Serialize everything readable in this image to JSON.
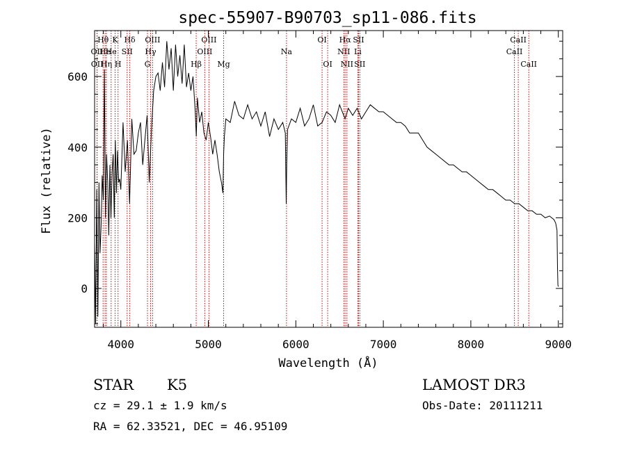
{
  "chart_data": {
    "type": "line",
    "title": "spec-55907-B90703_sp11-086.fits",
    "xlabel": "Wavelength (Å)",
    "ylabel": "Flux (relative)",
    "xlim": [
      3700,
      9050
    ],
    "ylim": [
      -110,
      730
    ],
    "xticks": [
      4000,
      5000,
      6000,
      7000,
      8000,
      9000
    ],
    "xtick_labels": [
      "4000",
      "5000",
      "6000",
      "7000",
      "8000",
      "9000"
    ],
    "yticks": [
      0,
      200,
      400,
      600
    ],
    "ytick_labels": [
      "0",
      "200",
      "400",
      "600"
    ],
    "grid": false,
    "series": [
      {
        "color": "#000000",
        "x": [
          3700,
          3712,
          3725,
          3737,
          3750,
          3762,
          3775,
          3787,
          3800,
          3812,
          3825,
          3837,
          3850,
          3862,
          3875,
          3887,
          3900,
          3912,
          3925,
          3937,
          3950,
          3962,
          3975,
          3987,
          4000,
          4025,
          4050,
          4075,
          4100,
          4125,
          4150,
          4175,
          4200,
          4225,
          4250,
          4275,
          4300,
          4325,
          4350,
          4375,
          4400,
          4425,
          4450,
          4475,
          4500,
          4525,
          4550,
          4575,
          4600,
          4625,
          4650,
          4675,
          4700,
          4725,
          4750,
          4775,
          4800,
          4825,
          4850,
          4862,
          4875,
          4900,
          4925,
          4950,
          4975,
          5000,
          5025,
          5050,
          5075,
          5100,
          5125,
          5150,
          5167,
          5175,
          5183,
          5200,
          5250,
          5300,
          5350,
          5400,
          5450,
          5500,
          5550,
          5600,
          5650,
          5700,
          5750,
          5800,
          5850,
          5880,
          5890,
          5896,
          5905,
          5950,
          6000,
          6050,
          6100,
          6150,
          6200,
          6250,
          6300,
          6350,
          6400,
          6450,
          6500,
          6563,
          6600,
          6650,
          6700,
          6750,
          6800,
          6850,
          6900,
          6950,
          7000,
          7050,
          7100,
          7150,
          7200,
          7250,
          7300,
          7350,
          7400,
          7450,
          7500,
          7550,
          7600,
          7650,
          7700,
          7750,
          7800,
          7850,
          7900,
          7950,
          8000,
          8050,
          8100,
          8150,
          8200,
          8250,
          8300,
          8350,
          8400,
          8450,
          8500,
          8550,
          8600,
          8650,
          8700,
          8750,
          8800,
          8850,
          8900,
          8950,
          8970,
          8985,
          8990,
          8995,
          9000
        ],
        "y": [
          130,
          -100,
          280,
          -80,
          300,
          100,
          180,
          320,
          250,
          620,
          200,
          380,
          300,
          150,
          350,
          200,
          330,
          380,
          200,
          420,
          270,
          390,
          300,
          310,
          280,
          470,
          330,
          420,
          240,
          480,
          380,
          390,
          440,
          470,
          350,
          420,
          490,
          300,
          450,
          560,
          600,
          610,
          560,
          640,
          570,
          700,
          620,
          680,
          560,
          690,
          600,
          660,
          580,
          690,
          570,
          610,
          560,
          600,
          500,
          430,
          540,
          470,
          500,
          440,
          420,
          470,
          430,
          380,
          420,
          380,
          330,
          300,
          270,
          380,
          430,
          480,
          470,
          530,
          490,
          480,
          520,
          480,
          500,
          460,
          500,
          430,
          480,
          450,
          470,
          440,
          240,
          350,
          450,
          480,
          470,
          510,
          460,
          480,
          520,
          460,
          470,
          500,
          490,
          470,
          520,
          480,
          510,
          490,
          510,
          480,
          500,
          520,
          510,
          500,
          500,
          490,
          480,
          470,
          470,
          460,
          440,
          440,
          440,
          420,
          400,
          390,
          380,
          370,
          360,
          350,
          350,
          340,
          330,
          330,
          320,
          310,
          300,
          290,
          280,
          280,
          270,
          260,
          250,
          250,
          240,
          240,
          230,
          220,
          220,
          210,
          210,
          200,
          205,
          195,
          185,
          165,
          60,
          10,
          5
        ]
      }
    ],
    "spectral_lines": [
      {
        "label": "Hθ",
        "wavelength": 3797,
        "row": 1
      },
      {
        "label": "OII",
        "wavelength": 3727,
        "row": 2
      },
      {
        "label": "OII",
        "wavelength": 3729,
        "row": 3
      },
      {
        "label": "He",
        "wavelength": 3820,
        "row": 2
      },
      {
        "label": "Hη",
        "wavelength": 3835,
        "row": 3
      },
      {
        "label": "K",
        "wavelength": 3934,
        "row": 1
      },
      {
        "label": "He",
        "wavelength": 3889,
        "row": 2
      },
      {
        "label": "H",
        "wavelength": 3968,
        "row": 3
      },
      {
        "label": "Hδ",
        "wavelength": 4102,
        "row": 1
      },
      {
        "label": "SII",
        "wavelength": 4072,
        "row": 2
      },
      {
        "label": "OIII",
        "wavelength": 4363,
        "row": 1
      },
      {
        "label": "Hγ",
        "wavelength": 4340,
        "row": 2
      },
      {
        "label": "G",
        "wavelength": 4304,
        "row": 3
      },
      {
        "label": "OIII",
        "wavelength": 5007,
        "row": 1
      },
      {
        "label": "OIII",
        "wavelength": 4959,
        "row": 2
      },
      {
        "label": "Hβ",
        "wavelength": 4861,
        "row": 3
      },
      {
        "label": "Mg",
        "wavelength": 5175,
        "row": 3
      },
      {
        "label": "Na",
        "wavelength": 5893,
        "row": 2
      },
      {
        "label": "OI",
        "wavelength": 6300,
        "row": 1
      },
      {
        "label": "OI",
        "wavelength": 6364,
        "row": 3
      },
      {
        "label": "Hα",
        "wavelength": 6563,
        "row": 1
      },
      {
        "label": "NII",
        "wavelength": 6548,
        "row": 2
      },
      {
        "label": "NII",
        "wavelength": 6584,
        "row": 3
      },
      {
        "label": "SII",
        "wavelength": 6717,
        "row": 1
      },
      {
        "label": "Li",
        "wavelength": 6708,
        "row": 2
      },
      {
        "label": "SII",
        "wavelength": 6731,
        "row": 3
      },
      {
        "label": "CaII",
        "wavelength": 8542,
        "row": 1
      },
      {
        "label": "CaII",
        "wavelength": 8498,
        "row": 2
      },
      {
        "label": "CaII",
        "wavelength": 8662,
        "row": 3
      }
    ],
    "line_marker_color": "#cc0000"
  },
  "info": {
    "class_label": "STAR",
    "subclass_label": "K5",
    "survey": "LAMOST DR3",
    "redshift": "cz = 29.1 ± 1.9 km/s",
    "obs_date": "Obs-Date: 20111211",
    "coords": "RA =  62.33521, DEC =  46.95109"
  }
}
